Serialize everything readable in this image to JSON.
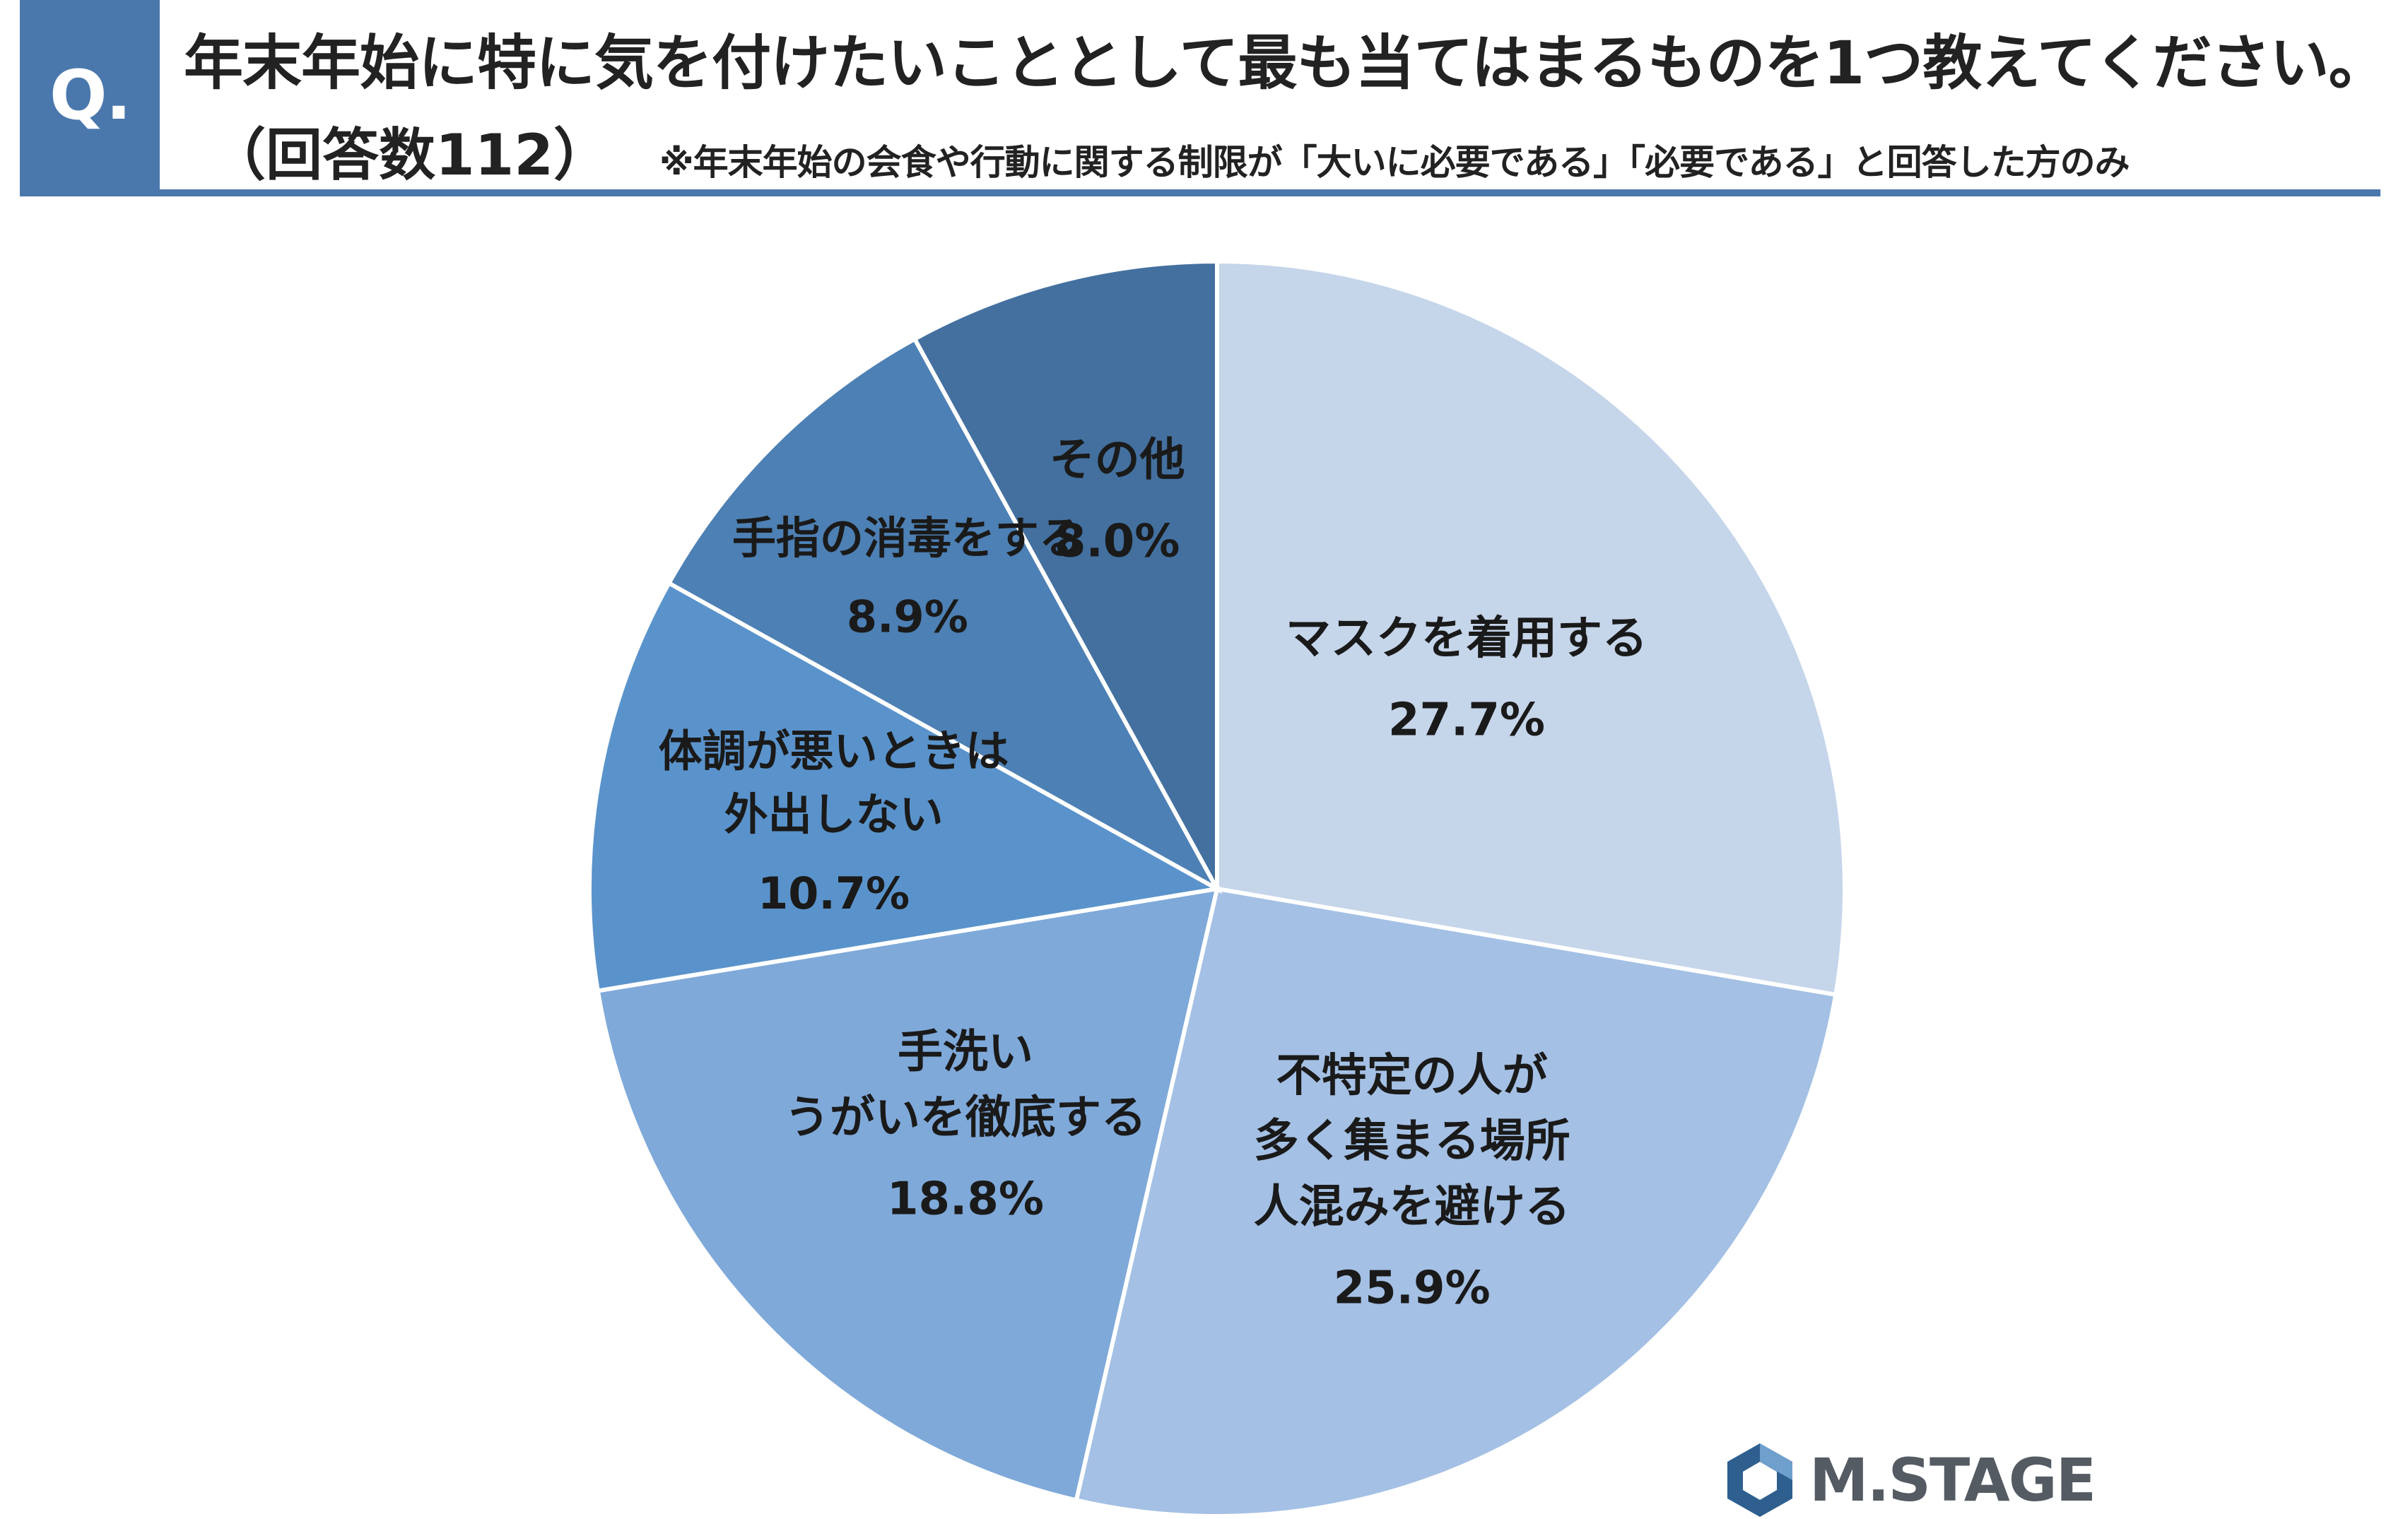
{
  "header": {
    "q_label": "Q.",
    "question": "年末年始に特に気を付けたいこととして最も当てはまるものを1つ教えてください。",
    "respondents": "（回答数112）",
    "note": "※年末年始の会食や行動に関する制限が「大いに必要である」「必要である」と回答した方のみ"
  },
  "chart_data": {
    "type": "pie",
    "start": "12 o'clock",
    "direction": "clockwise",
    "slices": [
      {
        "label": [
          "マスクを着用する"
        ],
        "value": 27.7,
        "value_label": "27.7%",
        "color": "#c5d5ea"
      },
      {
        "label": [
          "不特定の人が",
          "多く集まる場所",
          "人混みを避ける"
        ],
        "value": 25.9,
        "value_label": "25.9%",
        "color": "#a4c0e4"
      },
      {
        "label": [
          "手洗い",
          "うがいを徹底する"
        ],
        "value": 18.8,
        "value_label": "18.8%",
        "color": "#7fa9d9"
      },
      {
        "label": [
          "体調が悪いときは",
          "外出しない"
        ],
        "value": 10.7,
        "value_label": "10.7%",
        "color": "#5a93cb"
      },
      {
        "label": [
          "手指の消毒をする"
        ],
        "value": 8.9,
        "value_label": "8.9%",
        "color": "#4d80b4"
      },
      {
        "label": [
          "その他"
        ],
        "value": 8.0,
        "value_label": "8.0%",
        "color": "#43709f"
      }
    ]
  },
  "logo": {
    "text": "M.STAGE"
  },
  "colors": {
    "accent": "#4a78ad",
    "logo_dark": "#2e5f8f",
    "logo_light": "#6f9fcc"
  }
}
